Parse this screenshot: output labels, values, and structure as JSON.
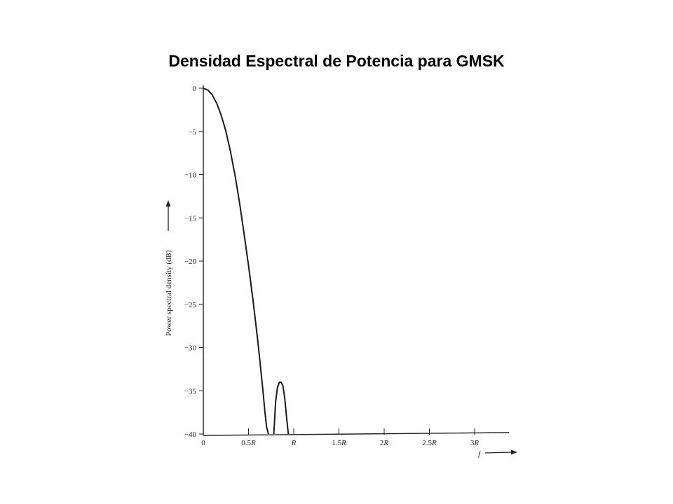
{
  "slide": {
    "title": "Densidad Espectral de Potencia para GMSK"
  },
  "chart_data": {
    "type": "line",
    "ylabel": "Power spectral density (dB)",
    "xlabel": "f",
    "ylim": [
      -40,
      0
    ],
    "xlim": [
      0,
      3.4
    ],
    "grid": false,
    "y_ticks": [
      0,
      -5,
      -10,
      -15,
      -20,
      -25,
      -30,
      -35,
      -40
    ],
    "y_tick_labels": [
      "0",
      "−5",
      "−10",
      "−15",
      "−20",
      "−25",
      "−30",
      "−35",
      "−40"
    ],
    "x_ticks": [
      0,
      0.5,
      1,
      1.5,
      2,
      2.5,
      3
    ],
    "x_tick_labels": [
      {
        "num": "0",
        "sym": ""
      },
      {
        "num": "0.5",
        "sym": "R"
      },
      {
        "num": "",
        "sym": "R"
      },
      {
        "num": "1.5",
        "sym": "R"
      },
      {
        "num": "2",
        "sym": "R"
      },
      {
        "num": "2.5",
        "sym": "R"
      },
      {
        "num": "3",
        "sym": "R"
      }
    ],
    "series": [
      {
        "x": [
          0,
          0.05,
          0.1,
          0.15,
          0.2,
          0.25,
          0.3,
          0.35,
          0.4,
          0.45,
          0.5,
          0.55,
          0.6,
          0.63,
          0.66,
          0.68,
          0.7,
          0.72
        ],
        "y": [
          0,
          -0.2,
          -0.8,
          -1.8,
          -3.2,
          -5.0,
          -7.3,
          -10.0,
          -13.2,
          -16.8,
          -20.5,
          -24.5,
          -29.0,
          -32.0,
          -35.0,
          -37.3,
          -39.2,
          -40
        ]
      },
      {
        "x": [
          0.78,
          0.8,
          0.82,
          0.84,
          0.86,
          0.88,
          0.9,
          0.92,
          0.94
        ],
        "y": [
          -40,
          -36.2,
          -34.6,
          -34.05,
          -34.0,
          -34.4,
          -35.8,
          -38.0,
          -40
        ]
      }
    ],
    "line_color": "#1a1a1a"
  }
}
